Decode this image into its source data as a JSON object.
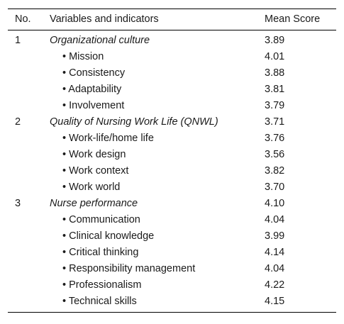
{
  "header": {
    "no": "No.",
    "variable": "Variables and indicators",
    "score": "Mean Score"
  },
  "rows": [
    {
      "no": "1",
      "label": "Organizational culture",
      "score": "3.89"
    },
    {
      "no": "",
      "label": "• Mission",
      "score": "4.01"
    },
    {
      "no": "",
      "label": "• Consistency",
      "score": "3.88"
    },
    {
      "no": "",
      "label": "• Adaptability",
      "score": "3.81"
    },
    {
      "no": "",
      "label": "• Involvement",
      "score": "3.79"
    },
    {
      "no": "2",
      "label": "Quality of Nursing Work Life (QNWL)",
      "score": "3.71"
    },
    {
      "no": "",
      "label": "• Work-life/home life",
      "score": "3.76"
    },
    {
      "no": "",
      "label": "• Work design",
      "score": "3.56"
    },
    {
      "no": "",
      "label": "• Work context",
      "score": "3.82"
    },
    {
      "no": "",
      "label": "• Work world",
      "score": "3.70"
    },
    {
      "no": "3",
      "label": "Nurse performance",
      "score": "4.10"
    },
    {
      "no": "",
      "label": "• Communication",
      "score": "4.04"
    },
    {
      "no": "",
      "label": "• Clinical knowledge",
      "score": "3.99"
    },
    {
      "no": "",
      "label": "• Critical thinking",
      "score": "4.14"
    },
    {
      "no": "",
      "label": "• Responsibility management",
      "score": "4.04"
    },
    {
      "no": "",
      "label": "• Professionalism",
      "score": "4.22"
    },
    {
      "no": "",
      "label": "• Technical skills",
      "score": "4.15"
    }
  ]
}
